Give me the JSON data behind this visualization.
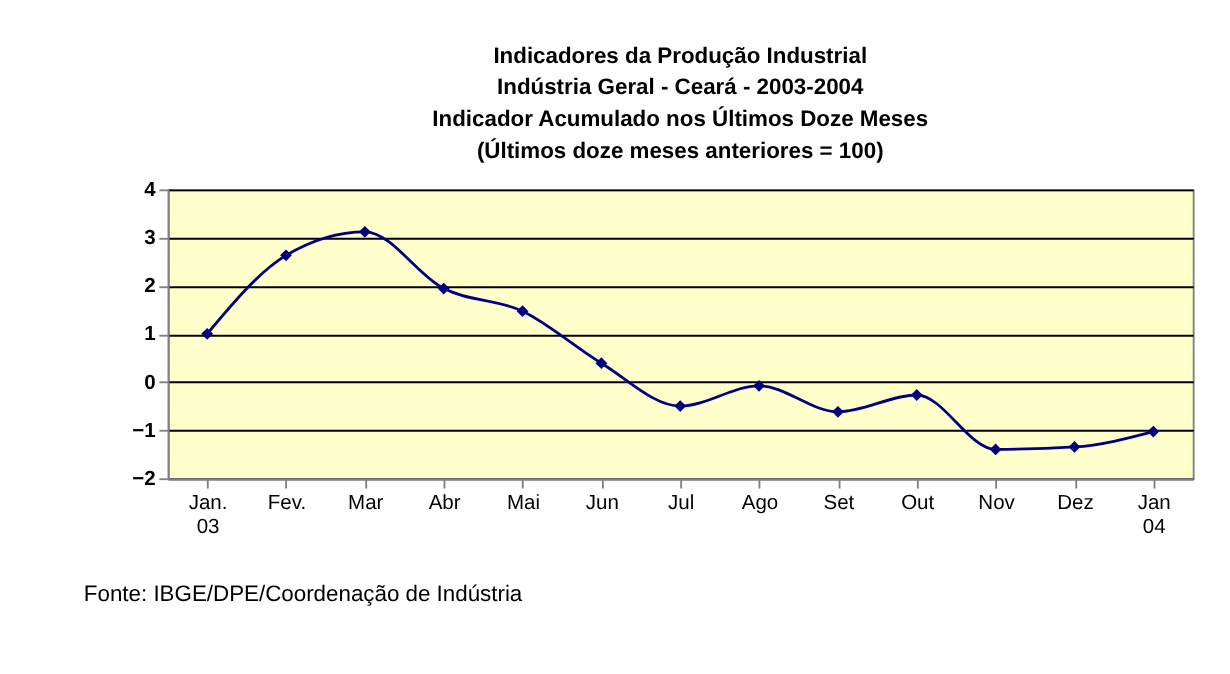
{
  "chart_data": {
    "type": "line",
    "title": [
      "Indicadores da Produção Industrial",
      "Indústria Geral - Ceará - 2003-2004",
      "Indicador Acumulado nos Últimos Doze Meses",
      "(Últimos doze meses anteriores = 100)"
    ],
    "categories": [
      "Jan.\n03",
      "Fev.",
      "Mar",
      "Abr",
      "Mai",
      "Jun",
      "Jul",
      "Ago",
      "Set",
      "Out",
      "Nov",
      "Dez",
      "Jan\n04"
    ],
    "series": [
      {
        "color": "#000080",
        "values": [
          1.0,
          2.63,
          3.12,
          1.94,
          1.47,
          0.39,
          -0.5,
          -0.08,
          -0.62,
          -0.27,
          -1.4,
          -1.35,
          -1.03
        ]
      }
    ],
    "ylim": [
      -2,
      4
    ],
    "yticks": [
      -2,
      -1,
      0,
      1,
      2,
      3,
      4
    ],
    "grid": "y",
    "marker": "diamond",
    "line_style": "solid",
    "legend": false,
    "annotations": [
      "Fonte: IBGE/DPE/Coordenação de Indústria"
    ]
  }
}
